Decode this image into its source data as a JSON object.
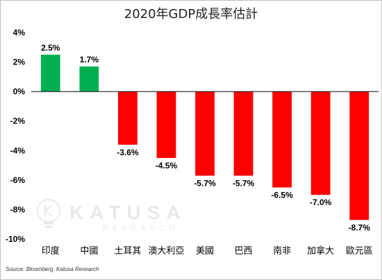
{
  "chart_data": {
    "type": "bar",
    "title": "2020年GDP成長率估計",
    "categories": [
      "印度",
      "中國",
      "土耳其",
      "澳大利亞",
      "美國",
      "巴西",
      "南非",
      "加拿大",
      "歐元區"
    ],
    "values": [
      2.5,
      1.7,
      -3.6,
      -4.5,
      -5.7,
      -5.7,
      -6.5,
      -7.0,
      -8.7
    ],
    "data_labels": [
      "2.5%",
      "1.7%",
      "-3.6%",
      "-4.5%",
      "-5.7%",
      "-5.7%",
      "-6.5%",
      "-7.0%",
      "-8.7%"
    ],
    "ylim": [
      -10,
      4
    ],
    "yticks": [
      4,
      2,
      0,
      -2,
      -4,
      -6,
      -8,
      -10
    ],
    "ytick_labels": [
      "4%",
      "2%",
      "0%",
      "-2%",
      "-4%",
      "-6%",
      "-8%",
      "-10%"
    ],
    "xlabel": "",
    "ylabel": "",
    "grid": false,
    "legend": "none",
    "colors": {
      "positive": "#00b050",
      "negative": "#ff0000"
    }
  },
  "source": "Source: Bloomberg, Katusa Research",
  "watermark": {
    "brand": "KATUSA",
    "sub": "RESEARCH",
    "icon": "lightbulb-k-icon"
  }
}
